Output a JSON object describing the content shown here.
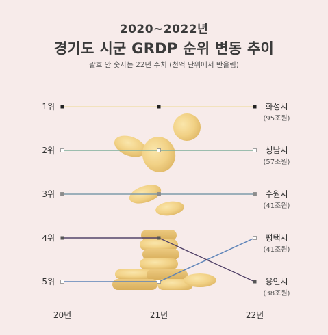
{
  "header": {
    "subtitle": "2020~2022년",
    "title": "경기도 시군 GRDP 순위 변동 추이",
    "note": "괄호 안 숫자는 22년 수치 (천억 단위에서 반올림)"
  },
  "chart_data": {
    "type": "line",
    "title": "경기도 시군 GRDP 순위 변동 추이",
    "subtitle": "2020~2022년",
    "annotation": "괄호 안 숫자는 22년 수치 (천억 단위에서 반올림)",
    "x": [
      "20년",
      "21년",
      "22년"
    ],
    "y_ticks": [
      "1위",
      "2위",
      "3위",
      "4위",
      "5위"
    ],
    "ylim": [
      1,
      5
    ],
    "y_inverted": true,
    "series": [
      {
        "name": "화성시",
        "value_label": "(95조원)",
        "ranks": [
          1,
          1,
          1
        ],
        "color": "#f0dfae",
        "marker": "#222222"
      },
      {
        "name": "성남시",
        "value_label": "(57조원)",
        "ranks": [
          2,
          2,
          2
        ],
        "color": "#7fae9a",
        "marker": "#ffffff"
      },
      {
        "name": "수원시",
        "value_label": "(41조원)",
        "ranks": [
          3,
          3,
          3
        ],
        "color": "#7f9baa",
        "marker": "#8c8c8c"
      },
      {
        "name": "평택시",
        "value_label": "(41조원)",
        "ranks": [
          5,
          5,
          4
        ],
        "color": "#5b82b8",
        "marker": "#ffffff"
      },
      {
        "name": "용인시",
        "value_label": "(38조원)",
        "ranks": [
          4,
          4,
          5
        ],
        "color": "#54446a",
        "marker": "#555555"
      }
    ],
    "grid": false,
    "legend": "right"
  }
}
